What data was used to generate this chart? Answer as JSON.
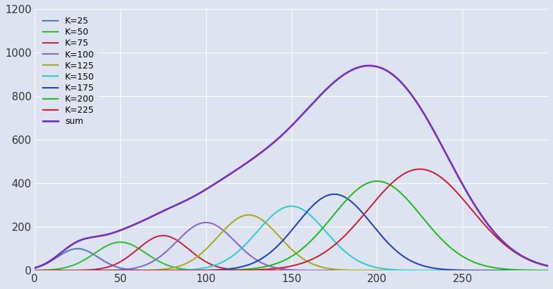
{
  "x_min": 0,
  "x_max": 300,
  "y_min": 0,
  "y_max": 1200,
  "x_ticks": [
    0,
    50,
    100,
    150,
    200,
    250
  ],
  "y_ticks": [
    0,
    200,
    400,
    600,
    800,
    1000,
    1200
  ],
  "background_color": "#dde3f0",
  "grid_color": "#ffffff",
  "series": [
    {
      "K": 25,
      "mu": 25,
      "sigma": 12,
      "amplitude": 100,
      "color": "#5577cc",
      "label": "K=25"
    },
    {
      "K": 50,
      "mu": 50,
      "sigma": 15,
      "amplitude": 130,
      "color": "#33bb33",
      "label": "K=50"
    },
    {
      "K": 75,
      "mu": 75,
      "sigma": 15,
      "amplitude": 160,
      "color": "#cc2244",
      "label": "K=75"
    },
    {
      "K": 100,
      "mu": 100,
      "sigma": 17,
      "amplitude": 220,
      "color": "#8866cc",
      "label": "K=100"
    },
    {
      "K": 125,
      "mu": 125,
      "sigma": 18,
      "amplitude": 255,
      "color": "#aaaa22",
      "label": "K=125"
    },
    {
      "K": 150,
      "mu": 150,
      "sigma": 20,
      "amplitude": 295,
      "color": "#33cccc",
      "label": "K=150"
    },
    {
      "K": 175,
      "mu": 175,
      "sigma": 22,
      "amplitude": 350,
      "color": "#2244bb",
      "label": "K=175"
    },
    {
      "K": 200,
      "mu": 200,
      "sigma": 26,
      "amplitude": 410,
      "color": "#22bb22",
      "label": "K=200"
    },
    {
      "K": 225,
      "mu": 225,
      "sigma": 30,
      "amplitude": 465,
      "color": "#cc2233",
      "label": "K=225"
    }
  ],
  "sum_color": "#7733bb",
  "sum_label": "sum",
  "figsize": [
    8.0,
    4.18
  ],
  "dpi": 100,
  "legend_loc": "upper left",
  "legend_fontsize": 9
}
